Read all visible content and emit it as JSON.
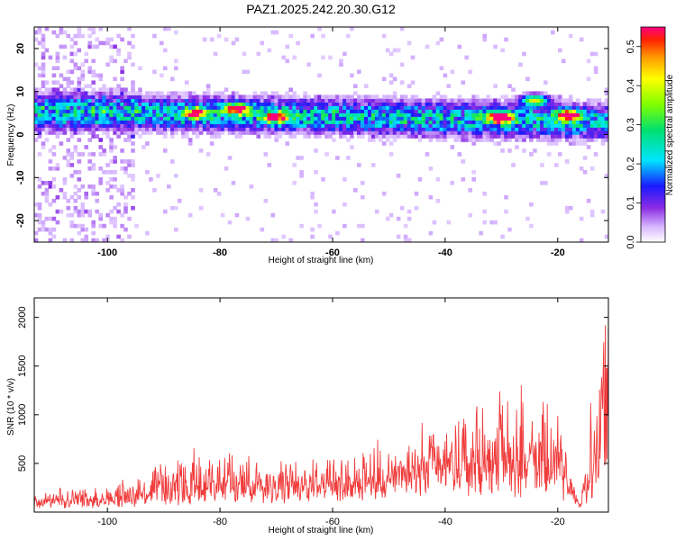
{
  "chart_data": [
    {
      "type": "heatmap",
      "title": "PAZ1.2025.242.20.30.G12",
      "xlabel": "Height of straight line (km)",
      "ylabel": "Frequency (Hz)",
      "xlim": [
        -113,
        -11
      ],
      "ylim": [
        -25,
        25
      ],
      "xticks": [
        -100,
        -80,
        -60,
        -40,
        -20
      ],
      "yticks": [
        -20,
        -10,
        0,
        10,
        20
      ],
      "colorbar": {
        "label": "Normalized spectral amplitude",
        "range": [
          0.0,
          0.55
        ],
        "ticks": [
          0.0,
          0.1,
          0.2,
          0.3,
          0.4,
          0.5
        ]
      },
      "band": {
        "center_hz_start": 5.5,
        "center_hz_end": 3.0,
        "halfwidth_hz": 3.5,
        "peaks": [
          {
            "x": -30,
            "y": 4,
            "amp": 0.55
          },
          {
            "x": -18,
            "y": 4.5,
            "amp": 0.5
          },
          {
            "x": -77,
            "y": 6,
            "amp": 0.45
          },
          {
            "x": -70,
            "y": 4,
            "amp": 0.42
          },
          {
            "x": -84,
            "y": 5,
            "amp": 0.4
          },
          {
            "x": -24,
            "y": 8,
            "amp": 0.38
          }
        ]
      }
    },
    {
      "type": "line",
      "xlabel": "Height of straight line (km)",
      "ylabel": "SNR (10 * v/v)",
      "xlim": [
        -113,
        -11
      ],
      "ylim": [
        0,
        2200
      ],
      "xticks": [
        -100,
        -80,
        -60,
        -40,
        -20
      ],
      "yticks": [
        500,
        1000,
        1500,
        2000
      ],
      "series": [
        {
          "name": "SNR",
          "color": "#f03c3c",
          "envelope": [
            {
              "x": -113,
              "base": 90,
              "peak": 230
            },
            {
              "x": -100,
              "base": 110,
              "peak": 300
            },
            {
              "x": -90,
              "base": 170,
              "peak": 560
            },
            {
              "x": -80,
              "base": 220,
              "peak": 750
            },
            {
              "x": -70,
              "base": 230,
              "peak": 600
            },
            {
              "x": -60,
              "base": 260,
              "peak": 650
            },
            {
              "x": -50,
              "base": 300,
              "peak": 720
            },
            {
              "x": -40,
              "base": 380,
              "peak": 1000
            },
            {
              "x": -30,
              "base": 420,
              "peak": 1350
            },
            {
              "x": -20,
              "base": 400,
              "peak": 1100
            },
            {
              "x": -16,
              "base": 60,
              "peak": 130
            },
            {
              "x": -13,
              "base": 400,
              "peak": 1900
            },
            {
              "x": -11,
              "base": 1500,
              "peak": 2200
            }
          ]
        }
      ]
    }
  ]
}
